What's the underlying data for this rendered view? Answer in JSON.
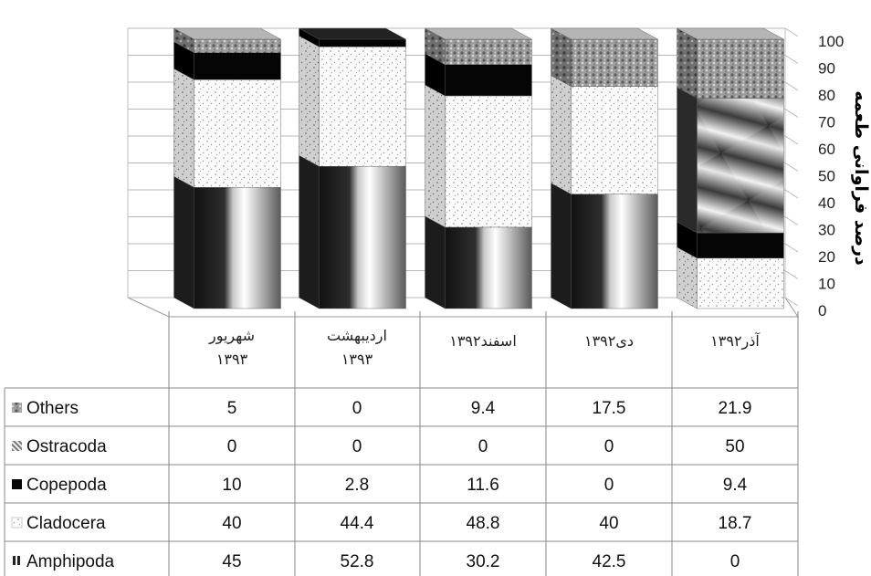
{
  "chart_data": {
    "type": "bar",
    "stacked": true,
    "ylabel": "درصد فراوانی طعمه",
    "ylim": [
      0,
      100
    ],
    "yticks": [
      "0",
      "10",
      "20",
      "30",
      "40",
      "50",
      "60",
      "70",
      "80",
      "90",
      "100"
    ],
    "categories": [
      [
        "شهریور",
        "۱۳۹۳"
      ],
      [
        "اردیبهشت",
        "۱۳۹۳"
      ],
      [
        "اسفند۱۳۹۲"
      ],
      [
        "دی۱۳۹۲"
      ],
      [
        "آذر۱۳۹۲"
      ]
    ],
    "series": [
      {
        "name": "Amphipoda",
        "values": [
          45,
          52.8,
          30.2,
          42.5,
          0
        ],
        "display": [
          "45",
          "52.8",
          "30.2",
          "42.5",
          "0"
        ],
        "swatch": "amphipoda"
      },
      {
        "name": "Cladocera",
        "values": [
          40,
          44.4,
          48.8,
          40,
          18.7
        ],
        "display": [
          "40",
          "44.4",
          "48.8",
          "40",
          "18.7"
        ],
        "swatch": "cladocera"
      },
      {
        "name": "Copepoda",
        "values": [
          10,
          2.8,
          11.6,
          0,
          9.4
        ],
        "display": [
          "10",
          "2.8",
          "11.6",
          "0",
          "9.4"
        ],
        "swatch": "copepoda"
      },
      {
        "name": "Ostracoda",
        "values": [
          0,
          0,
          0,
          0,
          50
        ],
        "display": [
          "0",
          "0",
          "0",
          "0",
          "50"
        ],
        "swatch": "ostracoda"
      },
      {
        "name": "Others",
        "values": [
          5,
          0,
          9.4,
          17.5,
          21.9
        ],
        "display": [
          "5",
          "0",
          "9.4",
          "17.5",
          "21.9"
        ],
        "swatch": "others"
      }
    ],
    "table_row_order": [
      "Others",
      "Ostracoda",
      "Copepoda",
      "Cladocera",
      "Amphipoda"
    ],
    "grid": true,
    "legend": "data-table-left"
  }
}
